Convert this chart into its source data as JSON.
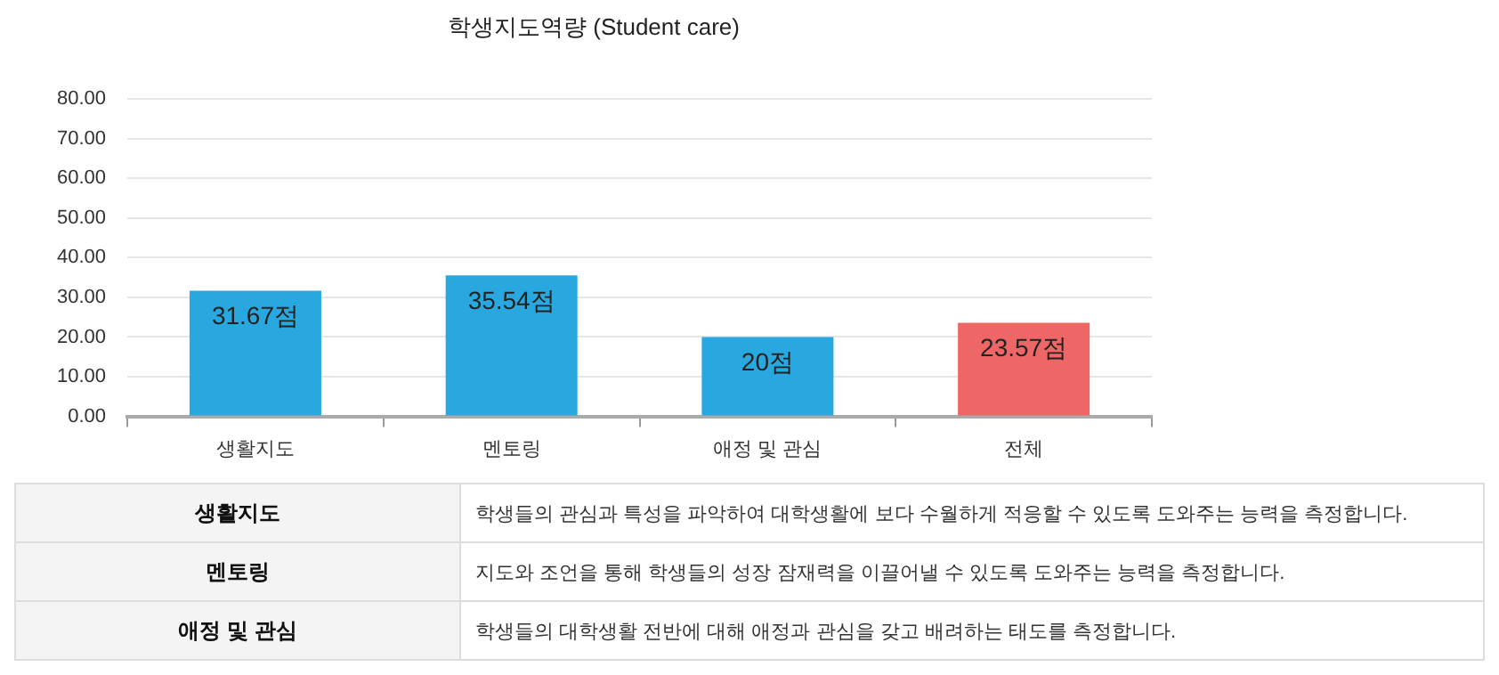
{
  "chart_data": {
    "type": "bar",
    "title": "학생지도역량 (Student care)",
    "categories": [
      "생활지도",
      "멘토링",
      "애정 및 관심",
      "전체"
    ],
    "values": [
      31.67,
      35.54,
      20,
      23.57
    ],
    "colors": [
      "#29a8e0",
      "#29a8e0",
      "#29a8e0",
      "#ee6666"
    ],
    "value_labels": [
      "31.67점",
      "35.54점",
      "20점",
      "23.57점"
    ],
    "ylim": [
      0,
      80
    ],
    "yticks": [
      {
        "value": 0,
        "label": "0.00"
      },
      {
        "value": 10,
        "label": "10.00"
      },
      {
        "value": 20,
        "label": "20.00"
      },
      {
        "value": 30,
        "label": "30.00"
      },
      {
        "value": 40,
        "label": "40.00"
      },
      {
        "value": 50,
        "label": "50.00"
      },
      {
        "value": 60,
        "label": "60.00"
      },
      {
        "value": 70,
        "label": "70.00"
      },
      {
        "value": 80,
        "label": "80.00"
      }
    ],
    "grid": "y",
    "legend": false,
    "annotations": [
      "생활지도",
      "학생들의 관심과 특성을 파악하여 대학생활에 보다 수월하게 적응할 수 있도록 도와주는 능력을 측정합니다.",
      "멘토링",
      "지도와 조언을 통해 학생들의 성장 잠재력을 이끌어낼 수 있도록 도와주는 능력을 측정합니다.",
      "애정 및 관심",
      "학생들의 대학생활 전반에 대해 애정과 관심을 갖고 배려하는 태도를 측정합니다."
    ]
  }
}
